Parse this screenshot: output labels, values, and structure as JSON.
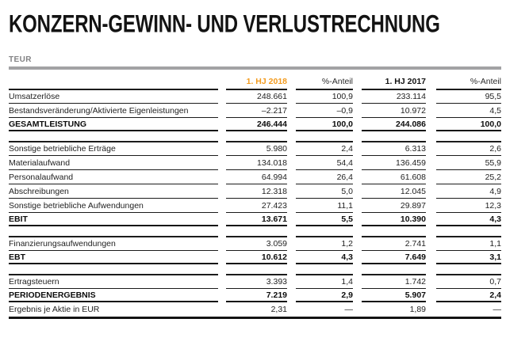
{
  "page": {
    "title": "KONZERN-GEWINN- UND VERLUSTRECHNUNG",
    "unit_label": "TEUR"
  },
  "colors": {
    "accent_orange": "#f39b1e",
    "rule_gray": "#a2a2a4",
    "line_black": "#131313"
  },
  "table": {
    "columns": [
      {
        "label": "1. HJ 2018",
        "accent": true,
        "bold": true
      },
      {
        "label": "%-Anteil",
        "accent": false,
        "bold": false
      },
      {
        "label": "1. HJ 2017",
        "accent": false,
        "bold": true
      },
      {
        "label": "%-Anteil",
        "accent": false,
        "bold": false
      }
    ],
    "sections": [
      {
        "rows": [
          {
            "label": "Umsatzerlöse",
            "values": [
              "248.661",
              "100,9",
              "233.114",
              "95,5"
            ]
          },
          {
            "label": "Bestandsveränderung/Aktivierte Eigenleistungen",
            "values": [
              "–2.217",
              "–0,9",
              "10.972",
              "4,5"
            ]
          },
          {
            "label": "GESAMTLEISTUNG",
            "emphasis": "total",
            "values": [
              "246.444",
              "100,0",
              "244.086",
              "100,0"
            ]
          }
        ]
      },
      {
        "rows": [
          {
            "label": "Sonstige betriebliche Erträge",
            "values": [
              "5.980",
              "2,4",
              "6.313",
              "2,6"
            ]
          },
          {
            "label": "Materialaufwand",
            "values": [
              "134.018",
              "54,4",
              "136.459",
              "55,9"
            ]
          },
          {
            "label": "Personalaufwand",
            "values": [
              "64.994",
              "26,4",
              "61.608",
              "25,2"
            ]
          },
          {
            "label": "Abschreibungen",
            "values": [
              "12.318",
              "5,0",
              "12.045",
              "4,9"
            ]
          },
          {
            "label": "Sonstige betriebliche Aufwendungen",
            "values": [
              "27.423",
              "11,1",
              "29.897",
              "12,3"
            ]
          },
          {
            "label": "EBIT",
            "emphasis": "total",
            "values": [
              "13.671",
              "5,5",
              "10.390",
              "4,3"
            ]
          }
        ]
      },
      {
        "rows": [
          {
            "label": "Finanzierungsaufwendungen",
            "values": [
              "3.059",
              "1,2",
              "2.741",
              "1,1"
            ]
          },
          {
            "label": "EBT",
            "emphasis": "total",
            "values": [
              "10.612",
              "4,3",
              "7.649",
              "3,1"
            ]
          }
        ]
      },
      {
        "rows": [
          {
            "label": "Ertragsteuern",
            "values": [
              "3.393",
              "1,4",
              "1.742",
              "0,7"
            ]
          },
          {
            "label": "PERIODENERGEBNIS",
            "emphasis": "total",
            "values": [
              "7.219",
              "2,9",
              "5.907",
              "2,4"
            ]
          },
          {
            "label": "Ergebnis je Aktie in EUR",
            "no_top": true,
            "values": [
              "2,31",
              "—",
              "1,89",
              "—"
            ]
          }
        ]
      }
    ]
  }
}
